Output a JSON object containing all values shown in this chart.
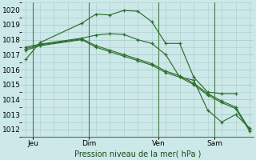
{
  "title": "Pression niveau de la mer( hPa )",
  "background_color": "#cce8e8",
  "grid_color": "#aacccc",
  "line_color": "#2d6e2d",
  "ylim": [
    1011.5,
    1020.5
  ],
  "yticks": [
    1012,
    1013,
    1014,
    1015,
    1016,
    1017,
    1018,
    1019,
    1020
  ],
  "xlim": [
    -0.3,
    16.3
  ],
  "day_positions": [
    0.5,
    4.5,
    9.5,
    13.5
  ],
  "day_labels": [
    "Jeu",
    "Dim",
    "Ven",
    "Sam"
  ],
  "vlines": [
    0.5,
    4.5,
    9.5,
    13.5
  ],
  "series": [
    {
      "x": [
        0,
        1,
        4,
        5,
        6,
        7,
        8,
        9,
        10,
        11,
        12,
        13,
        14,
        15
      ],
      "y": [
        1016.7,
        1017.8,
        1019.1,
        1019.7,
        1019.65,
        1019.95,
        1019.9,
        1019.2,
        1017.75,
        1017.75,
        1015.5,
        1014.5,
        1014.4,
        1014.4
      ]
    },
    {
      "x": [
        0,
        1,
        4,
        5,
        6,
        7,
        8,
        9,
        10,
        11,
        12,
        13,
        14,
        15,
        16
      ],
      "y": [
        1017.5,
        1017.7,
        1018.1,
        1018.3,
        1018.4,
        1018.35,
        1018.0,
        1017.75,
        1017.0,
        1015.5,
        1015.3,
        1013.3,
        1012.5,
        1013.0,
        1012.1
      ]
    },
    {
      "x": [
        0,
        1,
        4,
        5,
        6,
        7,
        8,
        9,
        10,
        11,
        12,
        13,
        14,
        15,
        16
      ],
      "y": [
        1017.4,
        1017.65,
        1018.05,
        1017.6,
        1017.3,
        1017.0,
        1016.7,
        1016.4,
        1015.9,
        1015.6,
        1015.1,
        1014.4,
        1013.9,
        1013.5,
        1012.0
      ]
    },
    {
      "x": [
        0,
        1,
        4,
        5,
        6,
        7,
        8,
        9,
        10,
        11,
        12,
        13,
        14,
        15,
        16
      ],
      "y": [
        1017.3,
        1017.6,
        1018.0,
        1017.5,
        1017.2,
        1016.9,
        1016.6,
        1016.3,
        1015.8,
        1015.5,
        1015.0,
        1014.3,
        1013.8,
        1013.4,
        1011.9
      ]
    }
  ]
}
